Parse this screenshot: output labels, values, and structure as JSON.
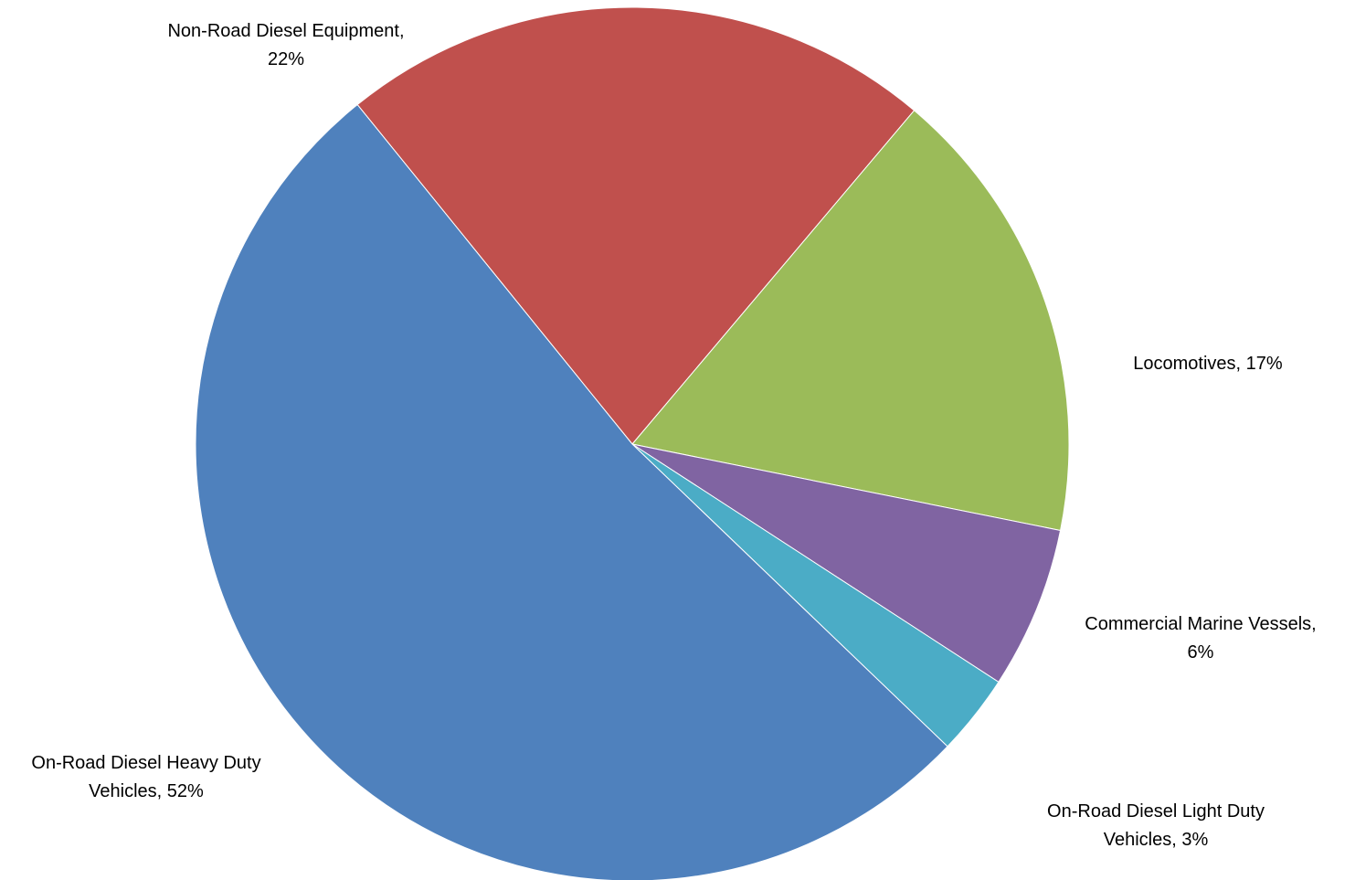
{
  "chart_data": {
    "type": "pie",
    "slices": [
      {
        "name": "Non-Road Diesel Equipment",
        "value": 22,
        "label_lines": [
          "Non-Road Diesel Equipment,",
          "22%"
        ],
        "color": "#C0504D"
      },
      {
        "name": "Locomotives",
        "value": 17,
        "label_lines": [
          "Locomotives, 17%"
        ],
        "color": "#9BBB59"
      },
      {
        "name": "Commercial Marine Vessels",
        "value": 6,
        "label_lines": [
          "Commercial Marine Vessels,",
          "6%"
        ],
        "color": "#8064A2"
      },
      {
        "name": "On-Road Diesel Light Duty Vehicles",
        "value": 3,
        "label_lines": [
          "On-Road Diesel Light Duty",
          "Vehicles, 3%"
        ],
        "color": "#4BACC6"
      },
      {
        "name": "On-Road Diesel Heavy Duty Vehicles",
        "value": 52,
        "label_lines": [
          "On-Road Diesel Heavy Duty",
          "Vehicles, 52%"
        ],
        "color": "#4F81BD"
      }
    ],
    "legend": "none"
  }
}
